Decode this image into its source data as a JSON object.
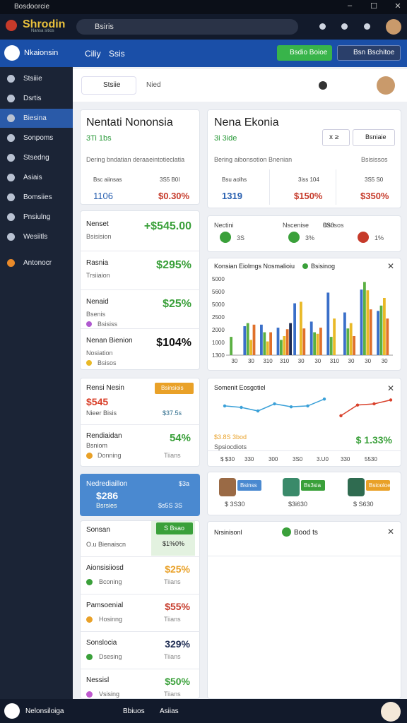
{
  "window": {
    "title": "Bosdoorcie"
  },
  "header": {
    "logo": "Shrodin",
    "logo_sub": "Nansa sitios",
    "search": "Bsiris"
  },
  "nav": {
    "brand": "Nkaionsin",
    "links": [
      "Ciliy",
      "Ssis"
    ],
    "buttons": [
      "Bsdio Boioe",
      "Bsn Bschitoe"
    ]
  },
  "sidebar": {
    "items": [
      "Stsiiie",
      "Dsrtis",
      "Biesina",
      "Sonpoms",
      "Stsedng",
      "Asiais",
      "Bomsiies",
      "Pnsiulng",
      "Wesiitls",
      "Antonocr"
    ]
  },
  "filter": {
    "select": "Stsiie",
    "input": "Nied"
  },
  "card_left": {
    "title": "Nentati Nononsia",
    "subtitle": "3Ti 1bs",
    "caption": "Dering bndatian deraaeintotieclatia",
    "stats": [
      {
        "label": "Bsc aiinsas",
        "value": "1106"
      },
      {
        "label": "3S5 B0I",
        "value": "$0.30%"
      }
    ]
  },
  "metrics": [
    {
      "title": "Nenset",
      "sub": "Bsisision",
      "value": "+$545.00"
    },
    {
      "title": "Rasnia",
      "sub": "Trsiiaion",
      "value": "$295%"
    },
    {
      "title": "Nenaid",
      "sub": "Bsenis",
      "note": "Bsisiss",
      "value": "$25%"
    },
    {
      "title": "Nenan Bienion",
      "sub": "Nosiation",
      "note": "Bsisos",
      "value": "$104%"
    }
  ],
  "promo": {
    "title": "Rensi Nesin",
    "value": "$545",
    "sub": "Nieer Bisis",
    "badge": "Bsinsiois",
    "badge_value": "$37.5s",
    "row_title": "Rendiaidan",
    "row_sub": "Bsniom",
    "row_value": "54%",
    "row_note": "Donning",
    "row_right": "Tiians"
  },
  "blue_card": {
    "title": "Nedrediaillon",
    "value": "$286",
    "sub": "Bsrsies",
    "right": "$3a",
    "right_value": "$s5S 3S"
  },
  "list": {
    "title": "Sonsan",
    "sub": "O.u Bienaiscn",
    "badge": "S Bsao",
    "badge_value": "$1%0%",
    "rows": [
      {
        "title": "Aionsisiiosd",
        "note": "Bconing",
        "value": "$25%",
        "right": "Tiians"
      },
      {
        "title": "Pamsoenial",
        "note": "Hosinng",
        "value": "$55%",
        "right": "Tiians"
      },
      {
        "title": "Sonslocia",
        "note": "Dsesing",
        "value": "329%",
        "right": "Tiians"
      },
      {
        "title": "Nessisl",
        "note": "Vsising",
        "value": "$50%",
        "right": "Tiians"
      }
    ]
  },
  "card_right": {
    "title": "Nena Ekonia",
    "subtitle": "3i 3ide",
    "buttons": [
      "x ≥",
      "Bsniaie"
    ],
    "caption": "Bering aibonsotion Bnenian",
    "caption_right": "Bsisissos",
    "stats": [
      {
        "label": "Bsu aolhs",
        "value": "1319"
      },
      {
        "label": "3iss 104",
        "value": "$150%"
      },
      {
        "label": "3S5 S0",
        "value": "$350%"
      }
    ]
  },
  "mini_stats": [
    {
      "label": "Nectini",
      "value": "3S"
    },
    {
      "label": "Nscenise",
      "value": "3%"
    },
    {
      "label": "0S0",
      "value": "Bsnsos"
    },
    {
      "label": "",
      "value": "1%"
    }
  ],
  "chart_data": [
    {
      "type": "bar",
      "title": "Konsian Eiolmgs Nosmalioiu",
      "legend": "Bsisinog",
      "categories": [
        "30",
        "30",
        "310",
        "310",
        "30",
        "30",
        "310",
        "30",
        "30",
        "30"
      ],
      "y_axis_labels": [
        "5000",
        "5600",
        "5000",
        "2500",
        "2000",
        "1000",
        "1300"
      ],
      "ylim": [
        0,
        100
      ],
      "series": [
        {
          "color": "#3a6fc9",
          "values": [
            null,
            38,
            40,
            36,
            68,
            44,
            82,
            56,
            86,
            58
          ]
        },
        {
          "color": "#5bb043",
          "values": [
            24,
            42,
            30,
            20,
            null,
            30,
            24,
            35,
            96,
            65
          ]
        },
        {
          "color": "#e9b928",
          "values": [
            null,
            20,
            18,
            25,
            70,
            28,
            48,
            42,
            85,
            75
          ]
        },
        {
          "color": "#e0702a",
          "values": [
            null,
            40,
            30,
            34,
            35,
            36,
            null,
            25,
            60,
            48
          ]
        },
        {
          "color": "#1d2b52",
          "values": [
            null,
            null,
            null,
            42,
            null,
            null,
            null,
            null,
            null,
            null
          ]
        }
      ]
    },
    {
      "type": "line",
      "title": "Somenit Eosgotiel",
      "note": "$3.8S 3bod",
      "sub": "Spsiocdiots",
      "value": "$ 1.33%",
      "x_labels": [
        "$ $30",
        "330",
        "300",
        "3S0",
        "3.U0",
        "330",
        "5530"
      ],
      "ylim": [
        0,
        100
      ],
      "series": [
        {
          "color": "#3aa0d8",
          "values": [
            55,
            50,
            38,
            62,
            52,
            55,
            78,
            null,
            null,
            null,
            null
          ]
        },
        {
          "color": "#d9412b",
          "values": [
            null,
            null,
            null,
            null,
            null,
            null,
            null,
            22,
            58,
            62,
            75
          ]
        }
      ]
    }
  ],
  "products": [
    {
      "badge": "Bsinss",
      "price": "$ 3S30"
    },
    {
      "badge": "Bs3sia",
      "price": "$3i630"
    },
    {
      "badge": "Bsiooloe",
      "price": "$ S630"
    }
  ],
  "notice": {
    "title": "Nrsinisonl",
    "status": "Bood ts"
  },
  "footer": {
    "brand": "Nelonsiloiga",
    "links": [
      "Bbiuos",
      "Asiias"
    ]
  }
}
